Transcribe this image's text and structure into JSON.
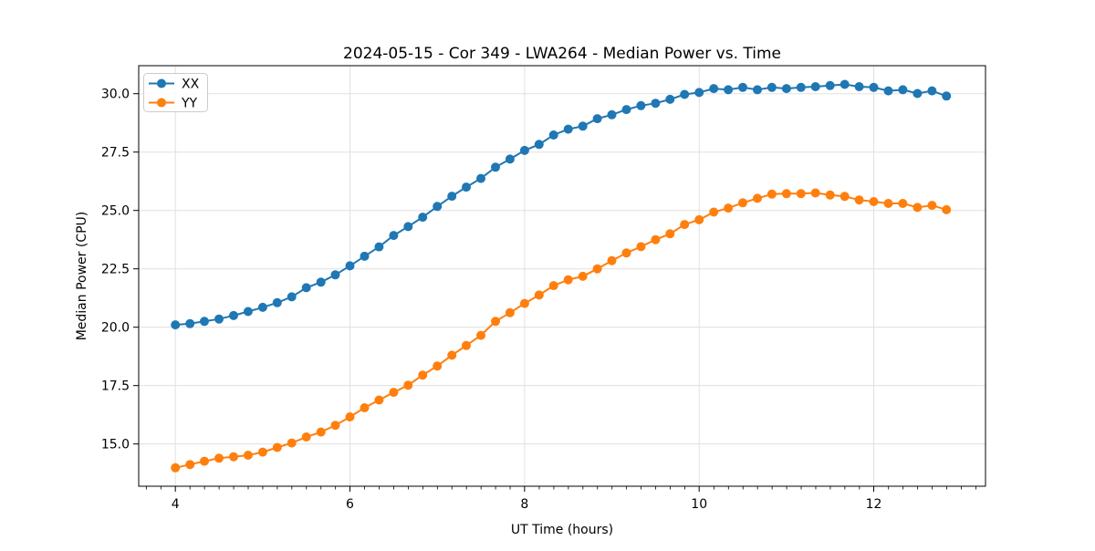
{
  "chart_data": {
    "type": "line",
    "title": "2024-05-15 - Cor 349 - LWA264 - Median Power vs. Time",
    "xlabel": "UT Time (hours)",
    "ylabel": "Median Power (CPU)",
    "xlim": [
      3.58,
      13.28
    ],
    "ylim": [
      13.19,
      31.2
    ],
    "grid": true,
    "legend": {
      "position": "upper-left",
      "entries": [
        {
          "label": "XX",
          "color": "#1f77b4"
        },
        {
          "label": "YY",
          "color": "#ff7f0e"
        }
      ]
    },
    "xticks": {
      "values": [
        4,
        6,
        8,
        10,
        12
      ],
      "labels": [
        "4",
        "6",
        "8",
        "10",
        "12"
      ],
      "minor_step": 0.1667
    },
    "yticks": {
      "values": [
        15.0,
        17.5,
        20.0,
        22.5,
        25.0,
        27.5,
        30.0
      ],
      "labels": [
        "15.0",
        "17.5",
        "20.0",
        "22.5",
        "25.0",
        "27.5",
        "30.0"
      ]
    },
    "x": [
      4.0,
      4.167,
      4.333,
      4.5,
      4.667,
      4.833,
      5.0,
      5.167,
      5.333,
      5.5,
      5.667,
      5.833,
      6.0,
      6.167,
      6.333,
      6.5,
      6.667,
      6.833,
      7.0,
      7.167,
      7.333,
      7.5,
      7.667,
      7.833,
      8.0,
      8.167,
      8.333,
      8.5,
      8.667,
      8.833,
      9.0,
      9.167,
      9.333,
      9.5,
      9.667,
      9.833,
      10.0,
      10.167,
      10.333,
      10.5,
      10.667,
      10.833,
      11.0,
      11.167,
      11.333,
      11.5,
      11.667,
      11.833,
      12.0,
      12.167,
      12.333,
      12.5,
      12.667,
      12.833
    ],
    "series": [
      {
        "name": "XX",
        "color": "#1f77b4",
        "marker": "circle",
        "values": [
          20.1,
          20.15,
          20.25,
          20.35,
          20.5,
          20.67,
          20.85,
          21.05,
          21.3,
          21.69,
          21.93,
          22.24,
          22.63,
          23.04,
          23.44,
          23.93,
          24.31,
          24.71,
          25.17,
          25.61,
          26.0,
          26.37,
          26.85,
          27.2,
          27.57,
          27.83,
          28.23,
          28.48,
          28.61,
          28.93,
          29.1,
          29.32,
          29.49,
          29.59,
          29.76,
          29.97,
          30.05,
          30.22,
          30.17,
          30.27,
          30.17,
          30.27,
          30.22,
          30.27,
          30.3,
          30.35,
          30.4,
          30.3,
          30.27,
          30.12,
          30.17,
          30.01,
          30.12,
          29.9
        ]
      },
      {
        "name": "YY",
        "color": "#ff7f0e",
        "marker": "circle",
        "values": [
          13.98,
          14.12,
          14.26,
          14.39,
          14.45,
          14.52,
          14.65,
          14.85,
          15.04,
          15.3,
          15.51,
          15.8,
          16.16,
          16.55,
          16.88,
          17.21,
          17.52,
          17.95,
          18.34,
          18.8,
          19.22,
          19.65,
          20.25,
          20.62,
          21.02,
          21.38,
          21.78,
          22.03,
          22.18,
          22.5,
          22.85,
          23.18,
          23.45,
          23.75,
          24.0,
          24.4,
          24.6,
          24.93,
          25.1,
          25.33,
          25.52,
          25.7,
          25.72,
          25.72,
          25.75,
          25.66,
          25.6,
          25.45,
          25.38,
          25.3,
          25.3,
          25.13,
          25.22,
          25.03
        ]
      }
    ]
  },
  "style": {
    "grid_color": "#e0e0e0",
    "axis_color": "#000000",
    "background": "#ffffff"
  }
}
